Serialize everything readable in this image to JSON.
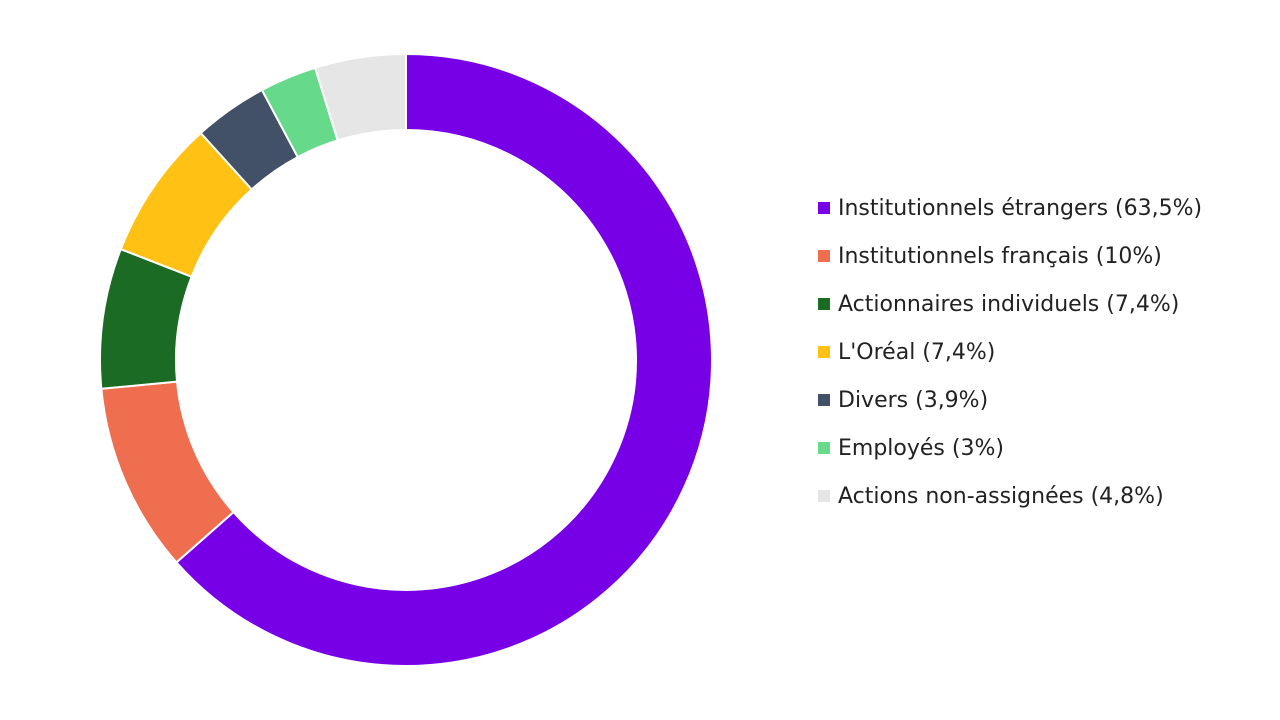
{
  "chart_data": {
    "type": "pie",
    "donut": true,
    "title": "",
    "legend_position": "right",
    "slices": [
      {
        "label": "Institutionnels étrangers (63,5%)",
        "value": 63.5,
        "color": "#7700E6"
      },
      {
        "label": "Institutionnels français (10%)",
        "value": 10,
        "color": "#EE6E4F"
      },
      {
        "label": "Actionnaires individuels (7,4%)",
        "value": 7.4,
        "color": "#1C6B25"
      },
      {
        "label": "L'Oréal (7,4%)",
        "value": 7.4,
        "color": "#FFC114"
      },
      {
        "label": "Divers (3,9%)",
        "value": 3.9,
        "color": "#425068"
      },
      {
        "label": "Employés (3%)",
        "value": 3,
        "color": "#66D98A"
      },
      {
        "label": "Actions non-assignées (4,8%)",
        "value": 4.8,
        "color": "#E6E6E6"
      }
    ]
  }
}
